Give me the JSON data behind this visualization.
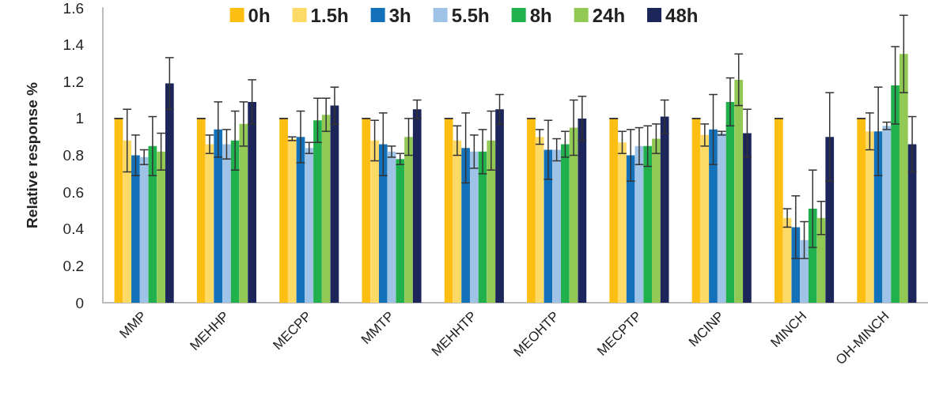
{
  "chart_data": {
    "type": "bar",
    "ylabel": "Relative response %",
    "categories": [
      "MMP",
      "MEHHP",
      "MECPP",
      "MMTP",
      "MEHHTP",
      "MEOHTP",
      "MECPTP",
      "MCINP",
      "MINCH",
      "OH-MINCH"
    ],
    "series": [
      {
        "name": "0h",
        "color": "#fcbf11",
        "values": [
          1,
          1,
          1,
          1,
          1,
          1,
          1,
          1,
          1,
          1
        ],
        "errors": [
          0,
          0,
          0,
          0,
          0,
          0,
          0,
          0,
          0,
          0
        ]
      },
      {
        "name": "1.5h",
        "color": "#fdd966",
        "values": [
          0.88,
          0.86,
          0.89,
          0.88,
          0.88,
          0.9,
          0.87,
          0.91,
          0.46,
          0.93
        ],
        "errors": [
          0.17,
          0.05,
          0.01,
          0.11,
          0.08,
          0.04,
          0.06,
          0.06,
          0.05,
          0.1
        ]
      },
      {
        "name": "3h",
        "color": "#1371b9",
        "values": [
          0.8,
          0.94,
          0.9,
          0.86,
          0.84,
          0.83,
          0.8,
          0.94,
          0.41,
          0.93
        ],
        "errors": [
          0.11,
          0.15,
          0.14,
          0.17,
          0.19,
          0.16,
          0.14,
          0.19,
          0.17,
          0.24
        ]
      },
      {
        "name": "5.5h",
        "color": "#9fc3e6",
        "values": [
          0.79,
          0.86,
          0.84,
          0.82,
          0.82,
          0.83,
          0.85,
          0.92,
          0.34,
          0.96
        ],
        "errors": [
          0.04,
          0.08,
          0.03,
          0.03,
          0.09,
          0.06,
          0.1,
          0.01,
          0.1,
          0.02
        ]
      },
      {
        "name": "8h",
        "color": "#20b04c",
        "values": [
          0.85,
          0.88,
          0.99,
          0.78,
          0.82,
          0.86,
          0.85,
          1.09,
          0.51,
          1.18
        ],
        "errors": [
          0.16,
          0.16,
          0.12,
          0.03,
          0.12,
          0.07,
          0.11,
          0.13,
          0.21,
          0.21
        ]
      },
      {
        "name": "24h",
        "color": "#92c954",
        "values": [
          0.82,
          0.97,
          1.02,
          0.9,
          0.88,
          0.95,
          0.89,
          1.21,
          0.46,
          1.35
        ],
        "errors": [
          0.1,
          0.12,
          0.09,
          0.1,
          0.16,
          0.15,
          0.08,
          0.14,
          0.09,
          0.21
        ]
      },
      {
        "name": "48h",
        "color": "#1d265b",
        "values": [
          1.19,
          1.09,
          1.07,
          1.05,
          1.05,
          1,
          1.01,
          0.92,
          0.9,
          0.86
        ],
        "errors": [
          0.14,
          0.12,
          0.1,
          0.05,
          0.08,
          0.12,
          0.09,
          0.13,
          0.24,
          0.15
        ]
      }
    ],
    "ylim": [
      0,
      1.6
    ],
    "yticks": [
      0,
      0.2,
      0.4,
      0.6,
      0.8,
      1,
      1.2,
      1.4,
      1.6
    ],
    "grid": false,
    "legend": "top"
  }
}
